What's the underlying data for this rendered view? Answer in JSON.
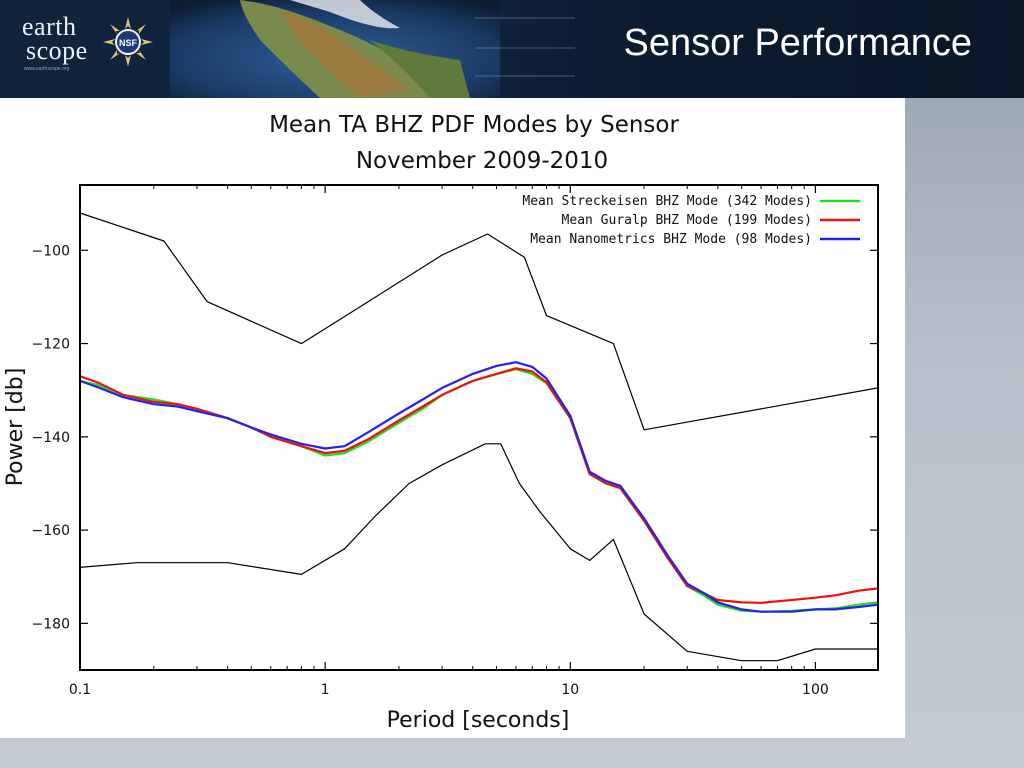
{
  "header": {
    "logo_line1": "earth",
    "logo_line2": "scope",
    "logo_url": "www.earthscope.org",
    "seal_text": "NSF",
    "slide_title": "Sensor Performance"
  },
  "chart_data": {
    "type": "line",
    "title": "Mean TA BHZ PDF Modes by Sensor",
    "subtitle": "November 2009-2010",
    "xlabel": "Period [seconds]",
    "ylabel": "Power [db]",
    "xscale": "log",
    "xlim": [
      0.1,
      180
    ],
    "ylim": [
      -190,
      -86
    ],
    "x_ticks": [
      {
        "value": 0.1,
        "label": "0.1"
      },
      {
        "value": 1,
        "label": "1"
      },
      {
        "value": 10,
        "label": "10"
      },
      {
        "value": 100,
        "label": "100"
      }
    ],
    "y_ticks": [
      {
        "value": -100,
        "label": "-100"
      },
      {
        "value": -120,
        "label": "-120"
      },
      {
        "value": -140,
        "label": "-140"
      },
      {
        "value": -160,
        "label": "-160"
      },
      {
        "value": -180,
        "label": "-180"
      }
    ],
    "legend_position": "top-right",
    "grid": false,
    "series": [
      {
        "name": "Mean Streckeisen BHZ Mode (342 Modes)",
        "color": "#22dd22",
        "x": [
          0.1,
          0.12,
          0.15,
          0.2,
          0.25,
          0.3,
          0.4,
          0.5,
          0.6,
          0.8,
          1.0,
          1.2,
          1.5,
          2.0,
          2.5,
          3.0,
          4.0,
          5.0,
          6.0,
          7.0,
          8.0,
          10,
          12,
          14,
          16,
          20,
          25,
          30,
          35,
          40,
          50,
          60,
          80,
          100,
          120,
          150,
          180
        ],
        "y": [
          -128,
          -129,
          -131,
          -132,
          -133,
          -134,
          -136,
          -138,
          -140,
          -142,
          -144,
          -143.5,
          -141,
          -137,
          -134,
          -131,
          -128,
          -126.5,
          -125.5,
          -126.5,
          -128.5,
          -136,
          -148,
          -150,
          -151,
          -158,
          -166,
          -172,
          -174,
          -176,
          -177.3,
          -177.5,
          -177.3,
          -177,
          -176.8,
          -176,
          -175.5
        ]
      },
      {
        "name": "Mean Guralp BHZ Mode (199 Modes)",
        "color": "#ee1111",
        "x": [
          0.1,
          0.12,
          0.15,
          0.2,
          0.25,
          0.3,
          0.4,
          0.5,
          0.6,
          0.8,
          1.0,
          1.2,
          1.5,
          2.0,
          2.5,
          3.0,
          4.0,
          5.0,
          6.0,
          7.0,
          8.0,
          10,
          12,
          14,
          16,
          20,
          25,
          30,
          35,
          40,
          50,
          60,
          80,
          100,
          120,
          150,
          180
        ],
        "y": [
          -127,
          -128.5,
          -131,
          -132.5,
          -133,
          -134,
          -136,
          -138,
          -140,
          -142,
          -143.5,
          -143,
          -140.5,
          -136.5,
          -133.5,
          -131,
          -128,
          -126.5,
          -125.3,
          -126,
          -128.3,
          -136,
          -148,
          -150,
          -151,
          -158,
          -166,
          -172,
          -173.5,
          -175,
          -175.5,
          -175.6,
          -175,
          -174.5,
          -174,
          -173,
          -172.5
        ]
      },
      {
        "name": "Mean Nanometrics BHZ Mode (98 Modes)",
        "color": "#2222ee",
        "x": [
          0.1,
          0.12,
          0.15,
          0.2,
          0.25,
          0.3,
          0.4,
          0.5,
          0.6,
          0.8,
          1.0,
          1.2,
          1.5,
          2.0,
          2.5,
          3.0,
          4.0,
          5.0,
          6.0,
          7.0,
          8.0,
          10,
          12,
          14,
          16,
          20,
          25,
          30,
          35,
          40,
          50,
          60,
          80,
          100,
          120,
          150,
          180
        ],
        "y": [
          -128,
          -129.5,
          -131.5,
          -133,
          -133.5,
          -134.5,
          -136,
          -138,
          -139.5,
          -141.5,
          -142.5,
          -142,
          -139,
          -135,
          -132,
          -129.5,
          -126.5,
          -124.8,
          -124,
          -125,
          -127.5,
          -135.5,
          -147.5,
          -149.5,
          -150.5,
          -157.5,
          -165.5,
          -171.5,
          -173.5,
          -175.5,
          -177,
          -177.5,
          -177.5,
          -177,
          -177,
          -176.5,
          -176
        ]
      },
      {
        "color": "#000000",
        "x": [
          0.1,
          0.22,
          0.33,
          0.8,
          1.5,
          3.0,
          4.6,
          6.5,
          8.0,
          15,
          20,
          180
        ],
        "y": [
          -92,
          -98,
          -111,
          -120,
          -111,
          -101,
          -96.5,
          -101.5,
          -114,
          -120,
          -138.5,
          -129.5
        ]
      },
      {
        "color": "#000000",
        "x": [
          0.1,
          0.17,
          0.4,
          0.8,
          1.2,
          1.6,
          2.2,
          3.0,
          4.5,
          5.2,
          6.2,
          7.5,
          10,
          12,
          15,
          20,
          30,
          50,
          70,
          100,
          180
        ],
        "y": [
          -168,
          -167,
          -167,
          -169.5,
          -164,
          -157,
          -150,
          -146,
          -141.5,
          -141.5,
          -150,
          -156,
          -164,
          -166.5,
          -162,
          -178,
          -186,
          -188,
          -188,
          -185.5,
          -185.5
        ]
      }
    ]
  }
}
